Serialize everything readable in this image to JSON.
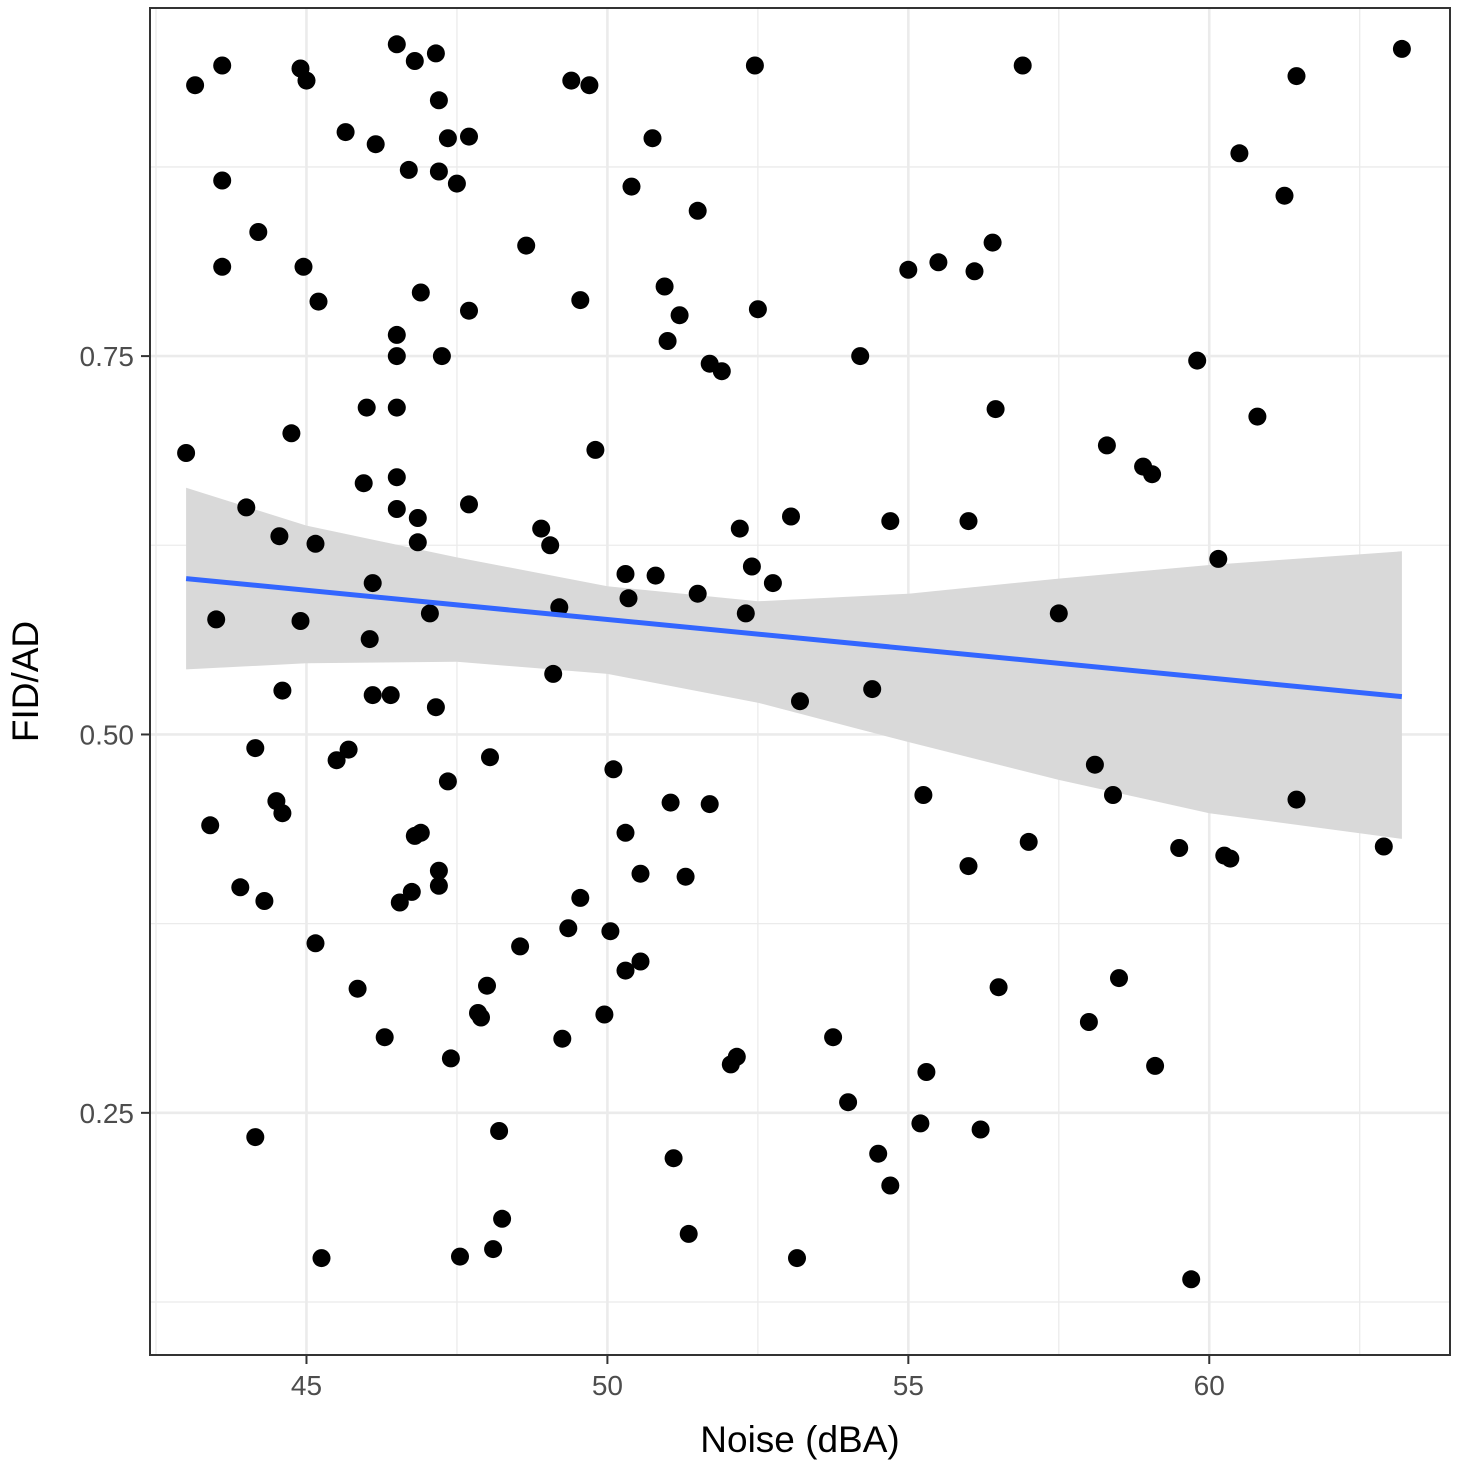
{
  "chart_data": {
    "type": "scatter",
    "xlabel": "Noise (dBA)",
    "ylabel": "FID/AD",
    "xlim": [
      42.4,
      64.0
    ],
    "ylim": [
      0.09,
      0.98
    ],
    "x_ticks": [
      45,
      50,
      55,
      60
    ],
    "x_tick_labels": [
      "45",
      "50",
      "55",
      "60"
    ],
    "y_ticks": [
      0.25,
      0.5,
      0.75
    ],
    "y_tick_labels": [
      "0.25",
      "0.50",
      "0.75"
    ],
    "grid": true,
    "colors": {
      "points": "#000000",
      "fit_line": "#3366ff",
      "band": "#d9d9d9",
      "grid": "#ebebeb",
      "panel_border": "#333333"
    },
    "fit": {
      "x_start": 43.0,
      "y_start": 0.603,
      "x_end": 63.2,
      "y_end": 0.525
    },
    "confidence_band": {
      "x": [
        43.0,
        45.0,
        47.5,
        50.0,
        52.5,
        55.0,
        57.5,
        60.0,
        63.2
      ],
      "upper": [
        0.663,
        0.638,
        0.617,
        0.598,
        0.588,
        0.593,
        0.603,
        0.612,
        0.621
      ],
      "lower": [
        0.543,
        0.547,
        0.548,
        0.54,
        0.521,
        0.495,
        0.47,
        0.448,
        0.431
      ]
    },
    "points": [
      [
        43.0,
        0.686
      ],
      [
        43.15,
        0.929
      ],
      [
        43.6,
        0.942
      ],
      [
        43.6,
        0.866
      ],
      [
        43.6,
        0.809
      ],
      [
        43.4,
        0.44
      ],
      [
        43.5,
        0.576
      ],
      [
        44.0,
        0.65
      ],
      [
        44.2,
        0.832
      ],
      [
        43.9,
        0.399
      ],
      [
        44.15,
        0.491
      ],
      [
        44.3,
        0.39
      ],
      [
        44.15,
        0.234
      ],
      [
        44.5,
        0.456
      ],
      [
        44.55,
        0.631
      ],
      [
        44.6,
        0.448
      ],
      [
        44.6,
        0.529
      ],
      [
        44.75,
        0.699
      ],
      [
        44.9,
        0.94
      ],
      [
        45.0,
        0.932
      ],
      [
        44.95,
        0.809
      ],
      [
        44.9,
        0.575
      ],
      [
        45.15,
        0.626
      ],
      [
        45.2,
        0.786
      ],
      [
        45.15,
        0.362
      ],
      [
        45.25,
        0.154
      ],
      [
        45.5,
        0.483
      ],
      [
        45.65,
        0.898
      ],
      [
        45.7,
        0.49
      ],
      [
        45.85,
        0.332
      ],
      [
        45.95,
        0.666
      ],
      [
        46.0,
        0.716
      ],
      [
        46.05,
        0.563
      ],
      [
        46.1,
        0.6
      ],
      [
        46.1,
        0.526
      ],
      [
        46.15,
        0.89
      ],
      [
        46.3,
        0.3
      ],
      [
        46.4,
        0.526
      ],
      [
        46.5,
        0.956
      ],
      [
        46.5,
        0.764
      ],
      [
        46.5,
        0.75
      ],
      [
        46.5,
        0.716
      ],
      [
        46.5,
        0.67
      ],
      [
        46.5,
        0.649
      ],
      [
        46.55,
        0.389
      ],
      [
        46.7,
        0.873
      ],
      [
        46.75,
        0.396
      ],
      [
        46.8,
        0.945
      ],
      [
        46.8,
        0.433
      ],
      [
        46.85,
        0.643
      ],
      [
        46.85,
        0.627
      ],
      [
        46.9,
        0.792
      ],
      [
        46.9,
        0.435
      ],
      [
        47.05,
        0.58
      ],
      [
        47.15,
        0.95
      ],
      [
        47.15,
        0.518
      ],
      [
        47.2,
        0.919
      ],
      [
        47.2,
        0.872
      ],
      [
        47.2,
        0.41
      ],
      [
        47.2,
        0.4
      ],
      [
        47.25,
        0.75
      ],
      [
        47.35,
        0.894
      ],
      [
        47.35,
        0.469
      ],
      [
        47.4,
        0.286
      ],
      [
        47.5,
        0.864
      ],
      [
        47.55,
        0.155
      ],
      [
        47.7,
        0.895
      ],
      [
        47.7,
        0.652
      ],
      [
        47.7,
        0.78
      ],
      [
        47.85,
        0.316
      ],
      [
        47.9,
        0.313
      ],
      [
        48.0,
        0.334
      ],
      [
        48.05,
        0.485
      ],
      [
        48.1,
        0.16
      ],
      [
        48.2,
        0.238
      ],
      [
        48.25,
        0.18
      ],
      [
        48.65,
        0.823
      ],
      [
        48.55,
        0.36
      ],
      [
        48.9,
        0.636
      ],
      [
        49.05,
        0.625
      ],
      [
        49.1,
        0.54
      ],
      [
        49.2,
        0.584
      ],
      [
        49.25,
        0.299
      ],
      [
        49.35,
        0.372
      ],
      [
        49.4,
        0.932
      ],
      [
        49.55,
        0.787
      ],
      [
        49.55,
        0.392
      ],
      [
        49.7,
        0.929
      ],
      [
        49.8,
        0.688
      ],
      [
        49.95,
        0.315
      ],
      [
        50.05,
        0.37
      ],
      [
        50.1,
        0.477
      ],
      [
        50.3,
        0.606
      ],
      [
        50.3,
        0.435
      ],
      [
        50.3,
        0.344
      ],
      [
        50.35,
        0.59
      ],
      [
        50.4,
        0.862
      ],
      [
        50.55,
        0.408
      ],
      [
        50.55,
        0.35
      ],
      [
        50.75,
        0.894
      ],
      [
        50.8,
        0.605
      ],
      [
        50.95,
        0.796
      ],
      [
        51.0,
        0.76
      ],
      [
        51.05,
        0.455
      ],
      [
        51.1,
        0.22
      ],
      [
        51.2,
        0.777
      ],
      [
        51.3,
        0.406
      ],
      [
        51.35,
        0.17
      ],
      [
        51.5,
        0.593
      ],
      [
        51.5,
        0.846
      ],
      [
        51.7,
        0.745
      ],
      [
        51.7,
        0.454
      ],
      [
        51.9,
        0.74
      ],
      [
        52.05,
        0.282
      ],
      [
        52.15,
        0.287
      ],
      [
        52.2,
        0.636
      ],
      [
        52.3,
        0.58
      ],
      [
        52.4,
        0.611
      ],
      [
        52.45,
        0.942
      ],
      [
        52.5,
        0.781
      ],
      [
        52.75,
        0.6
      ],
      [
        53.05,
        0.644
      ],
      [
        53.15,
        0.154
      ],
      [
        53.2,
        0.522
      ],
      [
        53.75,
        0.3
      ],
      [
        54.0,
        0.257
      ],
      [
        54.2,
        0.75
      ],
      [
        54.4,
        0.53
      ],
      [
        54.5,
        0.223
      ],
      [
        54.7,
        0.641
      ],
      [
        54.7,
        0.202
      ],
      [
        55.0,
        0.807
      ],
      [
        55.2,
        0.243
      ],
      [
        55.25,
        0.46
      ],
      [
        55.3,
        0.277
      ],
      [
        55.5,
        0.812
      ],
      [
        56.0,
        0.641
      ],
      [
        56.0,
        0.413
      ],
      [
        56.1,
        0.806
      ],
      [
        56.2,
        0.239
      ],
      [
        56.4,
        0.825
      ],
      [
        56.45,
        0.715
      ],
      [
        56.5,
        0.333
      ],
      [
        56.9,
        0.942
      ],
      [
        57.0,
        0.429
      ],
      [
        57.5,
        0.58
      ],
      [
        58.0,
        0.31
      ],
      [
        58.1,
        0.48
      ],
      [
        58.3,
        0.691
      ],
      [
        58.4,
        0.46
      ],
      [
        58.5,
        0.339
      ],
      [
        58.9,
        0.677
      ],
      [
        59.05,
        0.672
      ],
      [
        59.1,
        0.281
      ],
      [
        59.5,
        0.425
      ],
      [
        59.7,
        0.14
      ],
      [
        59.8,
        0.747
      ],
      [
        60.15,
        0.616
      ],
      [
        60.25,
        0.42
      ],
      [
        60.35,
        0.418
      ],
      [
        60.5,
        0.884
      ],
      [
        60.8,
        0.71
      ],
      [
        61.25,
        0.856
      ],
      [
        61.45,
        0.935
      ],
      [
        61.45,
        0.457
      ],
      [
        62.9,
        0.426
      ],
      [
        63.2,
        0.953
      ]
    ]
  }
}
